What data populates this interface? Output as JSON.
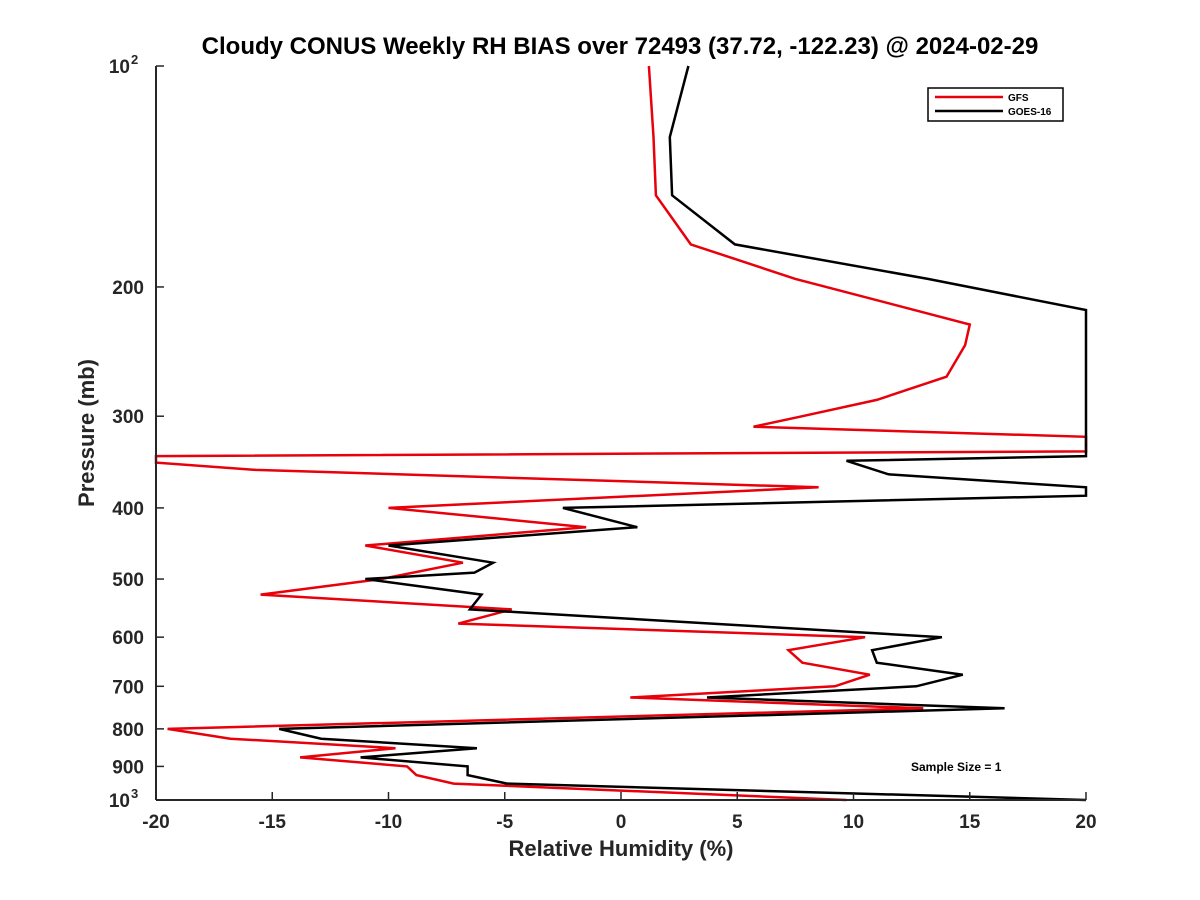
{
  "chart_data": {
    "type": "line",
    "title": "Cloudy CONUS Weekly RH BIAS over 72493 (37.72, -122.23) @ 2024-02-29",
    "xlabel": "Relative Humidity (%)",
    "ylabel": "Pressure (mb)",
    "xlim": [
      -20,
      20
    ],
    "ylim": [
      100,
      1000
    ],
    "y_scale": "log",
    "y_reversed": true,
    "grid": false,
    "legend_position": "top-right",
    "x_ticks": [
      "-20",
      "-15",
      "-10",
      "-5",
      "0",
      "5",
      "10",
      "15",
      "20"
    ],
    "y_ticks": [
      {
        "base": "10",
        "exp": "2"
      },
      {
        "base": "200",
        "exp": ""
      },
      {
        "base": "300",
        "exp": ""
      },
      {
        "base": "400",
        "exp": ""
      },
      {
        "base": "500",
        "exp": ""
      },
      {
        "base": "600",
        "exp": ""
      },
      {
        "base": "700",
        "exp": ""
      },
      {
        "base": "800",
        "exp": ""
      },
      {
        "base": "900",
        "exp": ""
      },
      {
        "base": "10",
        "exp": "3"
      }
    ],
    "annotation": "Sample Size = 1",
    "series": [
      {
        "name": "GFS",
        "color": "#e8000b",
        "points": [
          [
            1.2,
            100
          ],
          [
            1.4,
            125
          ],
          [
            1.5,
            150
          ],
          [
            3.0,
            175
          ],
          [
            7.5,
            195
          ],
          [
            15.0,
            225
          ],
          [
            14.8,
            240
          ],
          [
            14.0,
            265
          ],
          [
            11.0,
            285
          ],
          [
            7.8,
            300
          ],
          [
            5.7,
            310
          ],
          [
            20.0,
            320
          ],
          [
            20.0,
            335
          ],
          [
            -20.0,
            340
          ],
          [
            -20.0,
            347
          ],
          [
            -15.7,
            355
          ],
          [
            8.5,
            375
          ],
          [
            -10.0,
            400
          ],
          [
            -1.5,
            425
          ],
          [
            -11.0,
            450
          ],
          [
            -6.8,
            475
          ],
          [
            -10.3,
            500
          ],
          [
            -15.5,
            525
          ],
          [
            -4.7,
            550
          ],
          [
            -7.0,
            575
          ],
          [
            10.5,
            600
          ],
          [
            7.2,
            625
          ],
          [
            7.8,
            650
          ],
          [
            10.7,
            675
          ],
          [
            9.2,
            700
          ],
          [
            0.4,
            725
          ],
          [
            13.0,
            750
          ],
          [
            -19.5,
            800
          ],
          [
            -16.8,
            825
          ],
          [
            -9.7,
            850
          ],
          [
            -13.8,
            875
          ],
          [
            -9.2,
            900
          ],
          [
            -8.8,
            925
          ],
          [
            -7.2,
            950
          ],
          [
            9.7,
            1000
          ]
        ]
      },
      {
        "name": "GOES-16",
        "color": "#000000",
        "points": [
          [
            2.9,
            100
          ],
          [
            2.1,
            125
          ],
          [
            2.2,
            150
          ],
          [
            4.9,
            175
          ],
          [
            13.2,
            195
          ],
          [
            20.0,
            215
          ],
          [
            20.0,
            340
          ],
          [
            9.7,
            345
          ],
          [
            11.5,
            360
          ],
          [
            20.0,
            375
          ],
          [
            20.0,
            385
          ],
          [
            -2.5,
            400
          ],
          [
            0.7,
            425
          ],
          [
            -10.0,
            450
          ],
          [
            -5.5,
            475
          ],
          [
            -6.3,
            490
          ],
          [
            -11.0,
            500
          ],
          [
            -6.0,
            525
          ],
          [
            -6.5,
            550
          ],
          [
            13.8,
            600
          ],
          [
            10.8,
            625
          ],
          [
            11.0,
            650
          ],
          [
            14.7,
            675
          ],
          [
            12.7,
            700
          ],
          [
            3.7,
            725
          ],
          [
            16.5,
            750
          ],
          [
            -14.7,
            800
          ],
          [
            -12.9,
            825
          ],
          [
            -6.2,
            850
          ],
          [
            -11.2,
            875
          ],
          [
            -6.6,
            900
          ],
          [
            -6.6,
            925
          ],
          [
            -4.9,
            950
          ],
          [
            20.0,
            1000
          ]
        ]
      }
    ]
  }
}
